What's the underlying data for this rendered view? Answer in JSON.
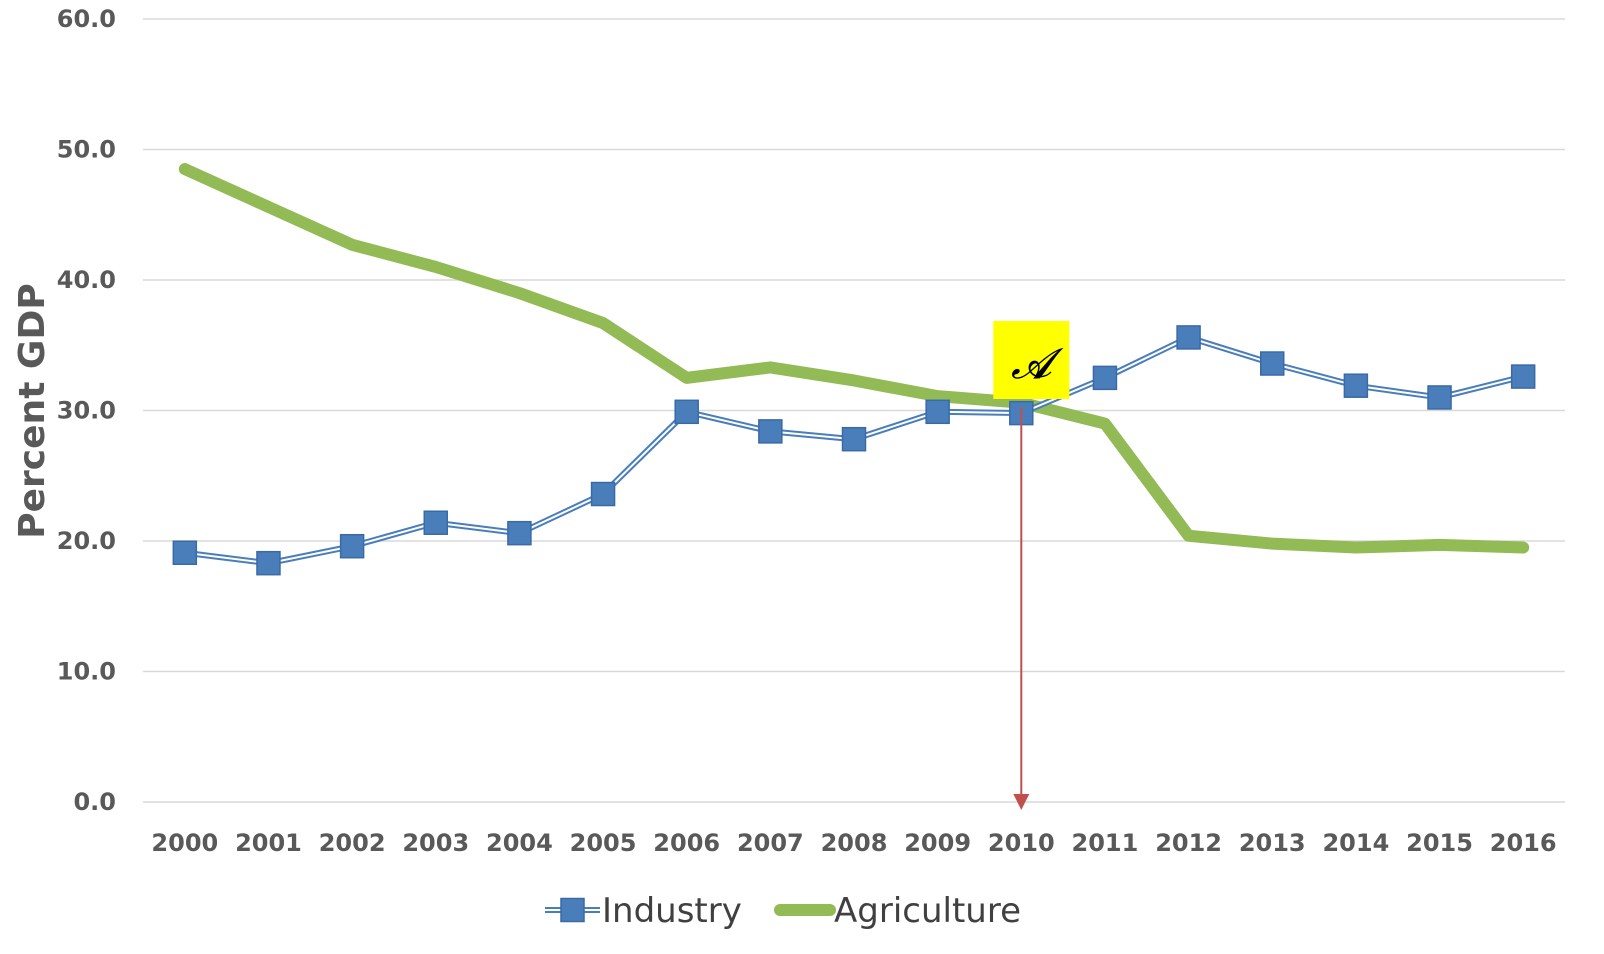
{
  "chart_data": {
    "type": "line",
    "title": "",
    "xlabel": "",
    "ylabel": "Percent GDP",
    "ylim": [
      0,
      60
    ],
    "y_ticks": [
      "0.0",
      "10.0",
      "20.0",
      "30.0",
      "40.0",
      "50.0",
      "60.0"
    ],
    "categories": [
      "2000",
      "2001",
      "2002",
      "2003",
      "2004",
      "2005",
      "2006",
      "2007",
      "2008",
      "2009",
      "2010",
      "2011",
      "2012",
      "2013",
      "2014",
      "2015",
      "2016"
    ],
    "grid": "horizontal",
    "legend_position": "bottom",
    "series": [
      {
        "name": "Industry",
        "color": "#4a7ebb",
        "marker": "square",
        "values": [
          19.1,
          18.3,
          19.6,
          21.4,
          20.6,
          23.6,
          29.9,
          28.4,
          27.8,
          29.9,
          29.8,
          32.5,
          35.6,
          33.6,
          31.9,
          31.0,
          32.6
        ]
      },
      {
        "name": "Agriculture",
        "color": "#92bb56",
        "marker": "none",
        "values": [
          48.5,
          45.6,
          42.7,
          41.0,
          39.0,
          36.7,
          32.5,
          33.3,
          32.3,
          31.1,
          30.6,
          29.0,
          20.4,
          19.8,
          19.5,
          19.7,
          19.5
        ]
      }
    ],
    "annotations": [
      {
        "label": "𝓐",
        "category": "2010",
        "arrow": "down-to-axis",
        "highlight_color": "#ffff00",
        "arrow_color": "#c0504d"
      }
    ]
  }
}
